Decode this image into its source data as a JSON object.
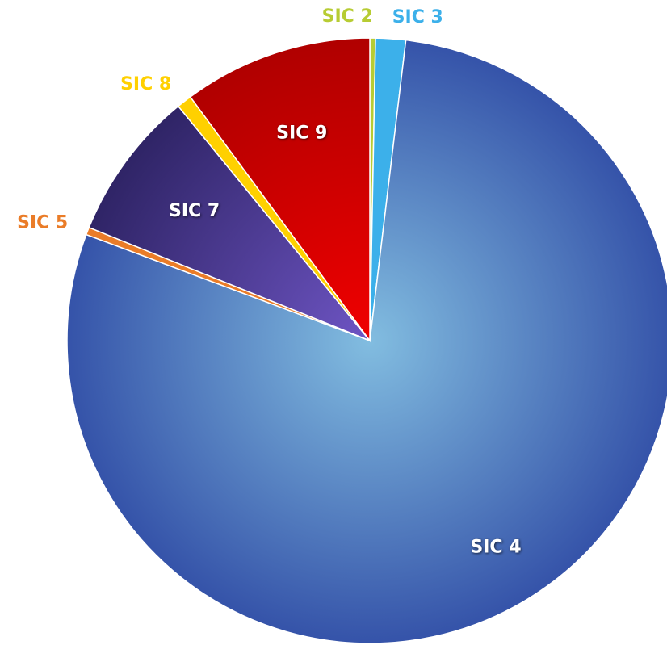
{
  "chart_data": {
    "type": "pie",
    "categories": [
      "SIC 2",
      "SIC 3",
      "SIC 4",
      "SIC 5",
      "SIC 7",
      "SIC 8",
      "SIC 9"
    ],
    "values": [
      0.3,
      1.6,
      78.8,
      0.4,
      8.0,
      0.8,
      10.1
    ],
    "colors": [
      "#b7cc33",
      "#3cb0ea",
      "#3b5cb0",
      "#ea7c28",
      "#4a3a94",
      "#ffd000",
      "#d00000"
    ]
  }
}
